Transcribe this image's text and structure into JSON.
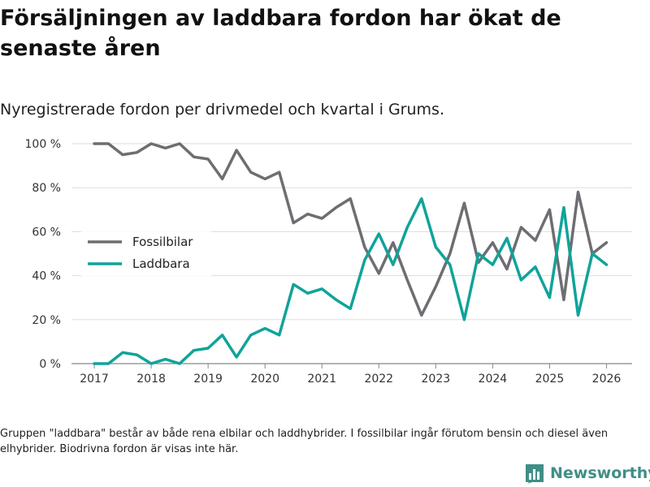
{
  "title": "Försäljningen av laddbara fordon har ökat de senaste åren",
  "subtitle": "Nyregistrerade fordon per drivmedel och kvartal i Grums.",
  "footnote": "Gruppen \"laddbara\" består av både rena elbilar och laddhybrider. I fossilbilar ingår förutom bensin och diesel även elhybrider. Biodrivna fordon är visas inte här.",
  "brand": {
    "name": "Newsworthy",
    "icon": "bar-chart-logo-icon"
  },
  "colors": {
    "fossil": "#6e6d72",
    "laddbara": "#10a39a",
    "grid": "#dddddd",
    "brand": "#3f8f86"
  },
  "chart_data": {
    "type": "line",
    "title": "Nyregistrerade fordon per drivmedel och kvartal i Grums.",
    "xlabel": "",
    "ylabel": "",
    "x_ticks": [
      2017,
      2018,
      2019,
      2020,
      2021,
      2022,
      2023,
      2024,
      2025,
      2026
    ],
    "xlim": [
      2016.6,
      2026.45
    ],
    "y_ticks": [
      0,
      20,
      40,
      60,
      80,
      100
    ],
    "y_tick_labels": [
      "0 %",
      "20 %",
      "40 %",
      "60 %",
      "80 %",
      "100 %"
    ],
    "ylim": [
      0,
      100
    ],
    "legend": [
      "Fossilbilar",
      "Laddbara"
    ],
    "legend_position": "middle-left",
    "x": [
      2017.0,
      2017.25,
      2017.5,
      2017.75,
      2018.0,
      2018.25,
      2018.5,
      2018.75,
      2019.0,
      2019.25,
      2019.5,
      2019.75,
      2020.0,
      2020.25,
      2020.5,
      2020.75,
      2021.0,
      2021.25,
      2021.5,
      2021.75,
      2022.0,
      2022.25,
      2022.5,
      2022.75,
      2023.0,
      2023.25,
      2023.5,
      2023.75,
      2024.0,
      2024.25,
      2024.5,
      2024.75,
      2025.0,
      2025.25,
      2025.5,
      2025.75,
      2026.0
    ],
    "series": [
      {
        "name": "Fossilbilar",
        "color": "#6e6d72",
        "values": [
          100,
          100,
          95,
          96,
          100,
          98,
          100,
          94,
          93,
          84,
          97,
          87,
          84,
          87,
          64,
          68,
          66,
          71,
          75,
          53,
          41,
          55,
          38,
          22,
          35,
          50,
          73,
          46,
          55,
          43,
          62,
          56,
          70,
          29,
          78,
          50,
          55
        ]
      },
      {
        "name": "Laddbara",
        "color": "#10a39a",
        "values": [
          0,
          0,
          5,
          4,
          0,
          2,
          0,
          6,
          7,
          13,
          3,
          13,
          16,
          13,
          36,
          32,
          34,
          29,
          25,
          47,
          59,
          45,
          62,
          75,
          53,
          45,
          20,
          50,
          45,
          57,
          38,
          44,
          30,
          71,
          22,
          50,
          45
        ]
      }
    ]
  }
}
